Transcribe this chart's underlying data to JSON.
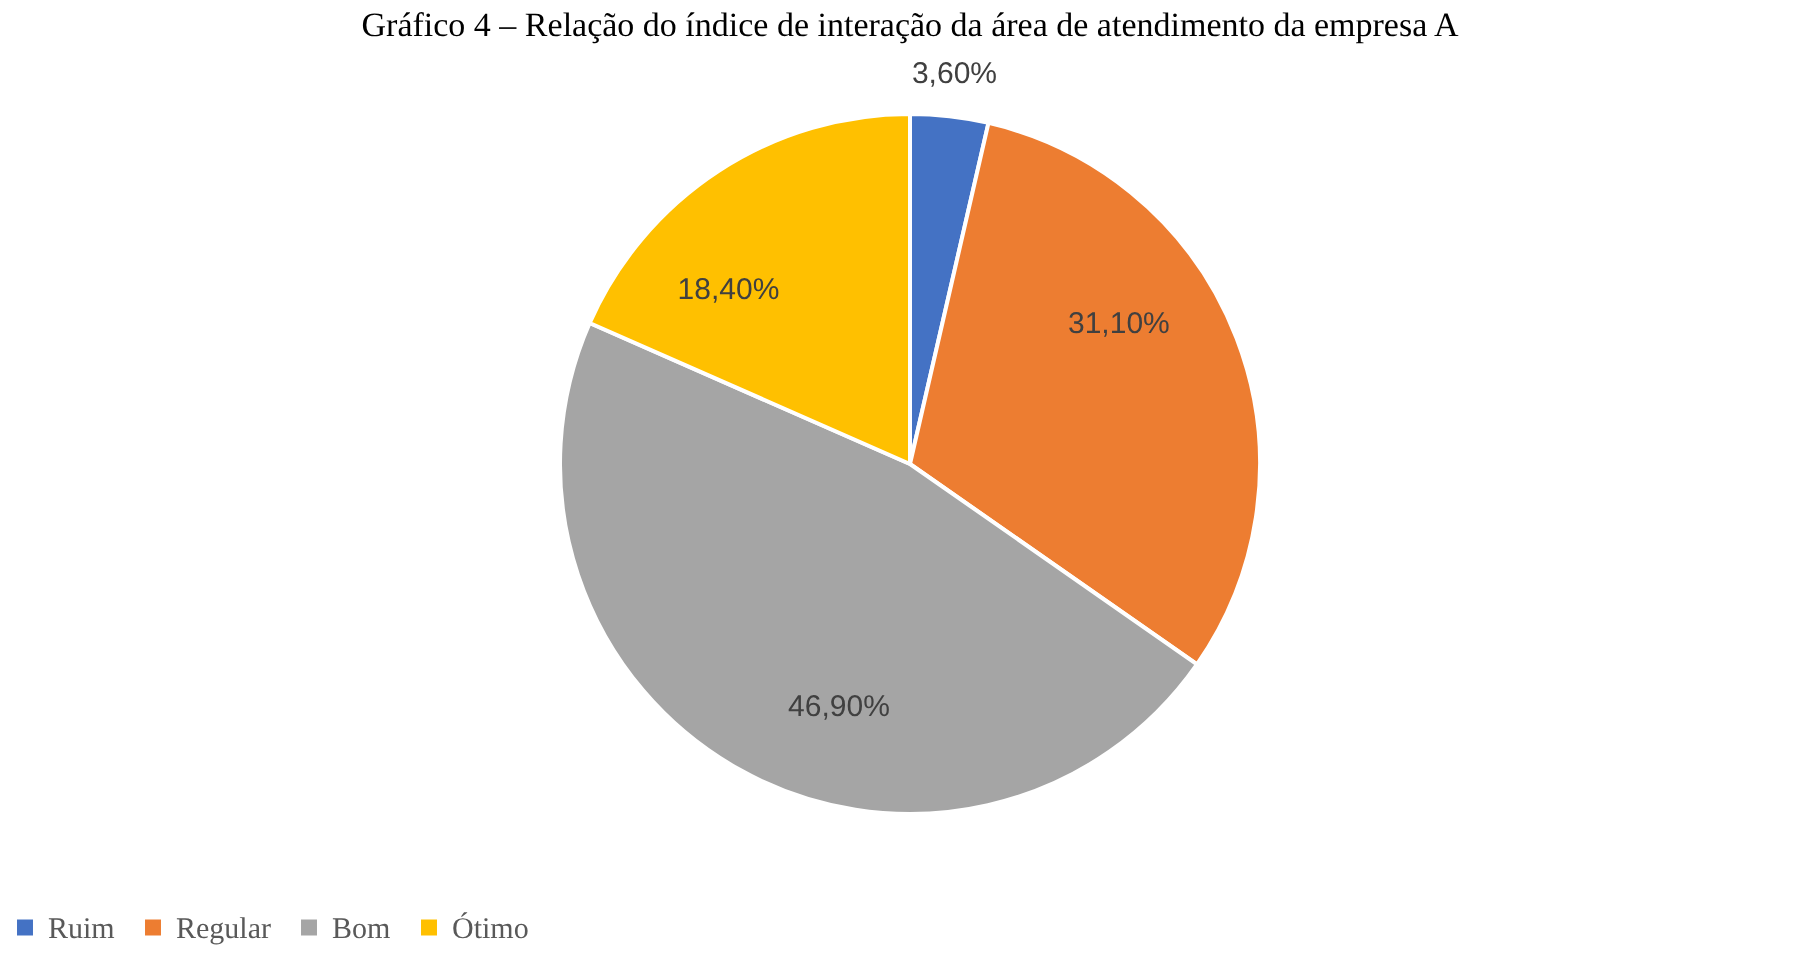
{
  "chart_data": {
    "type": "pie",
    "title": "Gráfico 4 – Relação do índice de interação da área de atendimento da empresa A",
    "categories": [
      "Ruim",
      "Regular",
      "Bom",
      "Ótimo"
    ],
    "values": [
      3.6,
      31.1,
      46.9,
      18.4
    ],
    "value_labels": [
      "3,60%",
      "31,10%",
      "46,90%",
      "18,40%"
    ],
    "colors": [
      "#4472c4",
      "#ed7d31",
      "#a5a5a5",
      "#ffc000"
    ],
    "legend": "bottom"
  }
}
